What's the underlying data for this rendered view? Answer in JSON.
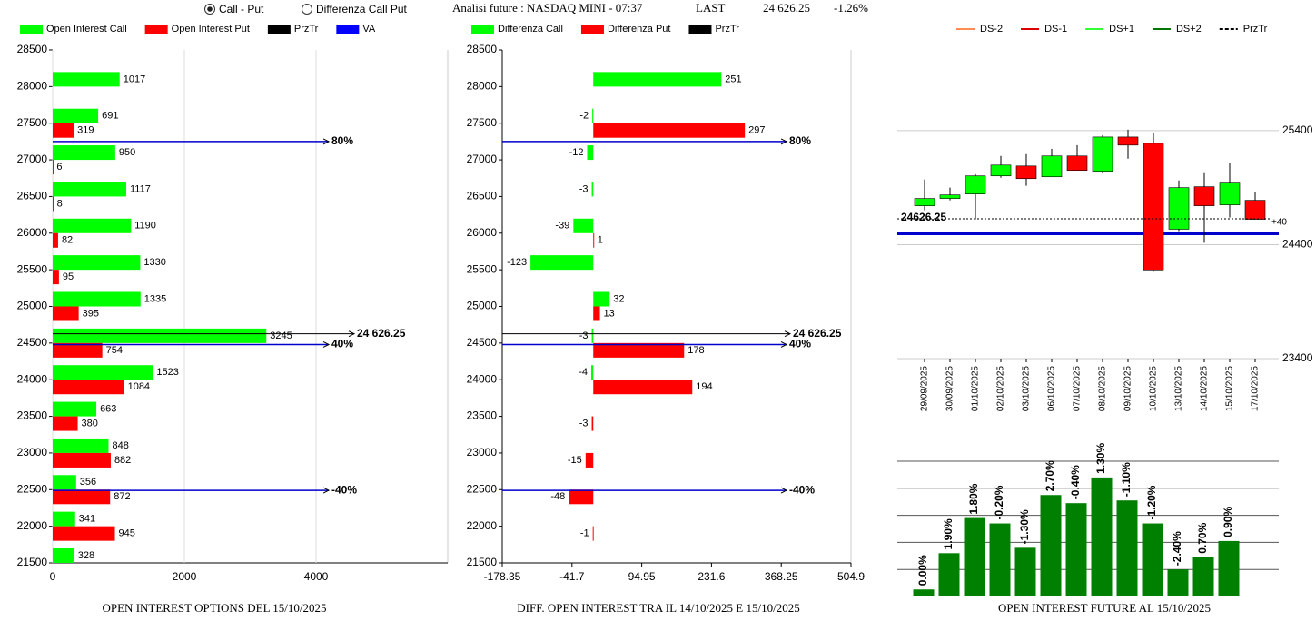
{
  "toolbar": {
    "options": [
      "Call - Put",
      "Differenza Call Put"
    ],
    "selected": 0,
    "title": "Analisi future : NASDAQ MINI - 07:37",
    "last_label": "LAST",
    "last": "24 626.25",
    "change": "-1.26%"
  },
  "chart_data": [
    {
      "type": "hbar",
      "title": "OPEN INTEREST OPTIONS DEL 15/10/2025",
      "y": [
        28000,
        27500,
        27000,
        26500,
        26000,
        25500,
        25000,
        24500,
        24000,
        23500,
        23000,
        22500,
        22000,
        21500
      ],
      "series": [
        {
          "name": "Open Interest Call",
          "color": "#00ff00",
          "values": [
            1017,
            691,
            950,
            1117,
            1190,
            1330,
            1335,
            3245,
            1523,
            663,
            848,
            356,
            341,
            328
          ]
        },
        {
          "name": "Open Interest Put",
          "color": "#ff0000",
          "values": [
            null,
            319,
            6,
            8,
            82,
            95,
            395,
            754,
            1084,
            380,
            882,
            872,
            945,
            null
          ]
        }
      ],
      "legend_extra": [
        {
          "name": "PrzTr",
          "color": "#000000"
        },
        {
          "name": "VA",
          "color": "#0000ff"
        }
      ],
      "lines": [
        {
          "value": 24626.25,
          "label": "24 626.25",
          "color": "#000000"
        },
        {
          "value": 27250,
          "label": "80%",
          "color": "#0000cc"
        },
        {
          "value": 24480,
          "label": "40%",
          "color": "#0000cc"
        },
        {
          "value": 22490,
          "label": "-40%",
          "color": "#0000cc"
        }
      ],
      "xlim": [
        0,
        6000
      ],
      "xticks": [
        0,
        2000,
        4000
      ],
      "ylim": [
        21500,
        28500
      ],
      "yticks": [
        21500,
        22000,
        22500,
        23000,
        23500,
        24000,
        24500,
        25000,
        25500,
        26000,
        26500,
        27000,
        27500,
        28000,
        28500
      ],
      "grid": true
    },
    {
      "type": "hbar",
      "title": "DIFF. OPEN INTEREST TRA IL 14/10/2025 E 15/10/2025",
      "y": [
        28000,
        27500,
        27000,
        26500,
        26000,
        25500,
        25000,
        24500,
        24000,
        23500,
        23000,
        22500,
        22000
      ],
      "series": [
        {
          "name": "Differenza Call",
          "color": "#00ff00",
          "values": [
            251,
            -2,
            -12,
            -3,
            -39,
            -123,
            32,
            -3,
            -4,
            null,
            null,
            null,
            null
          ]
        },
        {
          "name": "Differenza Put",
          "color": "#ff0000",
          "values": [
            null,
            297,
            null,
            null,
            1,
            null,
            13,
            178,
            194,
            -3,
            -15,
            -48,
            -1
          ]
        }
      ],
      "legend_extra": [
        {
          "name": "PrzTr",
          "color": "#000000"
        }
      ],
      "lines": [
        {
          "value": 24626.25,
          "label": "24 626.25",
          "color": "#000000"
        },
        {
          "value": 27250,
          "label": "80%",
          "color": "#0000cc"
        },
        {
          "value": 24480,
          "label": "40%",
          "color": "#0000cc"
        },
        {
          "value": 22490,
          "label": "-40%",
          "color": "#0000cc"
        }
      ],
      "xlim": [
        -178.35,
        504.9
      ],
      "xticks": [
        -178.35,
        -41.7,
        94.95,
        231.6,
        368.25,
        504.9
      ],
      "ylim": [
        21500,
        28500
      ],
      "yticks": [
        21500,
        22000,
        22500,
        23000,
        23500,
        24000,
        24500,
        25000,
        25500,
        26000,
        26500,
        27000,
        27500,
        28000,
        28500
      ],
      "grid": false
    },
    {
      "type": "candlestick",
      "x": [
        "29/09/2025",
        "30/09/2025",
        "01/10/2025",
        "02/10/2025",
        "03/10/2025",
        "06/10/2025",
        "07/10/2025",
        "08/10/2025",
        "09/10/2025",
        "10/10/2025",
        "13/10/2025",
        "14/10/2025",
        "15/10/2025",
        "17/10/2025"
      ],
      "open": [
        24741,
        24805,
        24844,
        25003,
        25090,
        24995,
        25178,
        25043,
        25344,
        25289,
        24535,
        24908,
        24749,
        24789
      ],
      "high": [
        24971,
        24900,
        25019,
        25178,
        25194,
        25241,
        25273,
        25360,
        25408,
        25384,
        24963,
        25035,
        25114,
        24860
      ],
      "low": [
        24702,
        24789,
        24622,
        24987,
        24916,
        24995,
        25051,
        25027,
        25154,
        24162,
        24519,
        24416,
        24638,
        24622
      ],
      "close": [
        24805,
        24836,
        25003,
        25098,
        24979,
        25178,
        25051,
        25344,
        25273,
        24178,
        24900,
        24741,
        24940,
        24622
      ],
      "up_color": "#00ff00",
      "down_color": "#ff0000",
      "legend": [
        {
          "name": "DS-2",
          "color": "#ff8c50"
        },
        {
          "name": "DS-1",
          "color": "#dd0000"
        },
        {
          "name": "DS+1",
          "color": "#33ff33"
        },
        {
          "name": "DS+2",
          "color": "#007700"
        },
        {
          "name": "PrzTr",
          "color": "#000000",
          "dash": true
        }
      ],
      "price_line": {
        "value": 24626.25,
        "label": "24626.25"
      },
      "level_line": {
        "value": 24495,
        "color": "#0000cc"
      },
      "note": "+40",
      "ylim": [
        23400,
        26100
      ],
      "yticks": [
        23400,
        24400,
        25400
      ],
      "grid": true
    },
    {
      "type": "bar",
      "title": "OPEN INTEREST FUTURE AL 15/10/2025",
      "values": [
        0.26,
        1.6,
        2.9,
        2.7,
        1.8,
        3.75,
        3.45,
        4.4,
        3.55,
        2.7,
        1.0,
        1.45,
        2.05
      ],
      "labels": [
        "0.00%",
        "1.90%",
        "1.80%",
        "-0.20%",
        "-1.30%",
        "2.70%",
        "-0.40%",
        "1.30%",
        "-1.10%",
        "-1.20%",
        "-2.40%",
        "0.70%",
        "0.90%"
      ],
      "color": "#008000",
      "ylim": [
        0,
        5
      ],
      "grid_lines": [
        1,
        2,
        3,
        4,
        5
      ]
    }
  ]
}
